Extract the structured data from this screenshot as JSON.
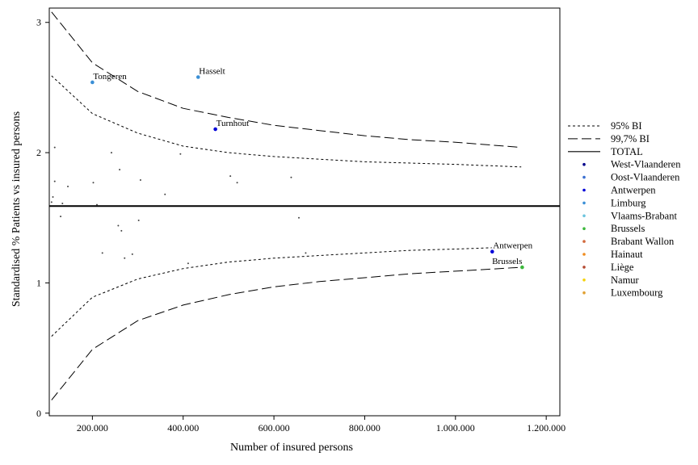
{
  "chart_data": {
    "type": "scatter",
    "title": "",
    "xlabel": "Number of insured persons",
    "ylabel": "Standardised % Patients vs insured persons",
    "xlim": [
      105000,
      1230000
    ],
    "ylim": [
      -0.02,
      3.11
    ],
    "x_ticks": [
      200000,
      400000,
      600000,
      800000,
      1000000,
      1200000
    ],
    "x_tick_labels": [
      "200.000",
      "400.000",
      "600.000",
      "800.000",
      "1.000.000",
      "1.200.000"
    ],
    "y_ticks": [
      0,
      1,
      2,
      3
    ],
    "y_tick_labels": [
      "0",
      "1",
      "2",
      "3"
    ],
    "grid": false,
    "legend_position": "right",
    "total": 1.59,
    "bands": [
      {
        "name": "95% BI",
        "style": "short-dash",
        "upper": [
          [
            110000,
            2.59
          ],
          [
            200000,
            2.3
          ],
          [
            300000,
            2.15
          ],
          [
            400000,
            2.05
          ],
          [
            500000,
            2.0
          ],
          [
            600000,
            1.97
          ],
          [
            700000,
            1.95
          ],
          [
            800000,
            1.93
          ],
          [
            900000,
            1.92
          ],
          [
            1000000,
            1.91
          ],
          [
            1145000,
            1.89
          ]
        ],
        "lower": [
          [
            110000,
            0.59
          ],
          [
            200000,
            0.89
          ],
          [
            300000,
            1.03
          ],
          [
            400000,
            1.11
          ],
          [
            500000,
            1.16
          ],
          [
            600000,
            1.19
          ],
          [
            700000,
            1.21
          ],
          [
            800000,
            1.23
          ],
          [
            900000,
            1.25
          ],
          [
            1000000,
            1.26
          ],
          [
            1080000,
            1.27
          ]
        ]
      },
      {
        "name": "99,7% BI",
        "style": "long-dash",
        "upper": [
          [
            110000,
            3.08
          ],
          [
            200000,
            2.69
          ],
          [
            300000,
            2.47
          ],
          [
            400000,
            2.34
          ],
          [
            500000,
            2.27
          ],
          [
            600000,
            2.21
          ],
          [
            700000,
            2.17
          ],
          [
            800000,
            2.13
          ],
          [
            900000,
            2.1
          ],
          [
            1000000,
            2.08
          ],
          [
            1145000,
            2.04
          ]
        ],
        "lower": [
          [
            110000,
            0.1
          ],
          [
            200000,
            0.49
          ],
          [
            300000,
            0.71
          ],
          [
            400000,
            0.83
          ],
          [
            500000,
            0.91
          ],
          [
            600000,
            0.97
          ],
          [
            700000,
            1.01
          ],
          [
            800000,
            1.04
          ],
          [
            900000,
            1.07
          ],
          [
            1000000,
            1.09
          ],
          [
            1145000,
            1.12
          ]
        ]
      }
    ],
    "points": [
      {
        "x": 113000,
        "y": 1.66
      },
      {
        "x": 110000,
        "y": 1.62
      },
      {
        "x": 117000,
        "y": 1.78
      },
      {
        "x": 117000,
        "y": 2.04
      },
      {
        "x": 130000,
        "y": 1.51
      },
      {
        "x": 134000,
        "y": 1.61
      },
      {
        "x": 146000,
        "y": 1.74
      },
      {
        "x": 202000,
        "y": 1.77
      },
      {
        "x": 210000,
        "y": 1.6
      },
      {
        "x": 222000,
        "y": 1.23
      },
      {
        "x": 242000,
        "y": 2.0
      },
      {
        "x": 257000,
        "y": 1.44
      },
      {
        "x": 260000,
        "y": 1.87
      },
      {
        "x": 264000,
        "y": 1.4
      },
      {
        "x": 271000,
        "y": 1.19
      },
      {
        "x": 288000,
        "y": 1.22
      },
      {
        "x": 302000,
        "y": 1.48
      },
      {
        "x": 306000,
        "y": 1.79
      },
      {
        "x": 360000,
        "y": 1.68
      },
      {
        "x": 394000,
        "y": 1.99
      },
      {
        "x": 411000,
        "y": 1.15
      },
      {
        "x": 504000,
        "y": 1.82
      },
      {
        "x": 519000,
        "y": 1.77
      },
      {
        "x": 638000,
        "y": 1.81
      },
      {
        "x": 655000,
        "y": 1.5
      },
      {
        "x": 670000,
        "y": 1.23
      }
    ],
    "labeled_points": [
      {
        "label": "Tongeren",
        "x": 200000,
        "y": 2.54,
        "color": "#3a8fd6"
      },
      {
        "label": "Hasselt",
        "x": 433000,
        "y": 2.58,
        "color": "#3a8fd6"
      },
      {
        "label": "Turnhout",
        "x": 471000,
        "y": 2.18,
        "color": "#0000d8"
      },
      {
        "label": "Antwerpen",
        "x": 1081000,
        "y": 1.24,
        "color": "#0000d8"
      },
      {
        "label": "Brussels",
        "x": 1147000,
        "y": 1.12,
        "color": "#3cb83c"
      }
    ],
    "legend": [
      {
        "label": "95% BI",
        "kind": "line",
        "style": "short-dash"
      },
      {
        "label": "99,7% BI",
        "kind": "line",
        "style": "long-dash"
      },
      {
        "label": "TOTAL",
        "kind": "line",
        "style": "solid"
      },
      {
        "label": "West-Vlaanderen",
        "kind": "dot",
        "color": "#00008b"
      },
      {
        "label": "Oost-Vlaanderen",
        "kind": "dot",
        "color": "#3a6fd0"
      },
      {
        "label": "Antwerpen",
        "kind": "dot",
        "color": "#0000d8"
      },
      {
        "label": "Limburg",
        "kind": "dot",
        "color": "#3a8fd6"
      },
      {
        "label": "Vlaams-Brabant",
        "kind": "dot",
        "color": "#6cc4de"
      },
      {
        "label": "Brussels",
        "kind": "dot",
        "color": "#3cb83c"
      },
      {
        "label": "Brabant Wallon",
        "kind": "dot",
        "color": "#d2693c"
      },
      {
        "label": "Hainaut",
        "kind": "dot",
        "color": "#f08c1e"
      },
      {
        "label": "Liège",
        "kind": "dot",
        "color": "#b44a32"
      },
      {
        "label": "Namur",
        "kind": "dot",
        "color": "#f5d20a"
      },
      {
        "label": "Luxembourg",
        "kind": "dot",
        "color": "#e1a032"
      }
    ]
  }
}
